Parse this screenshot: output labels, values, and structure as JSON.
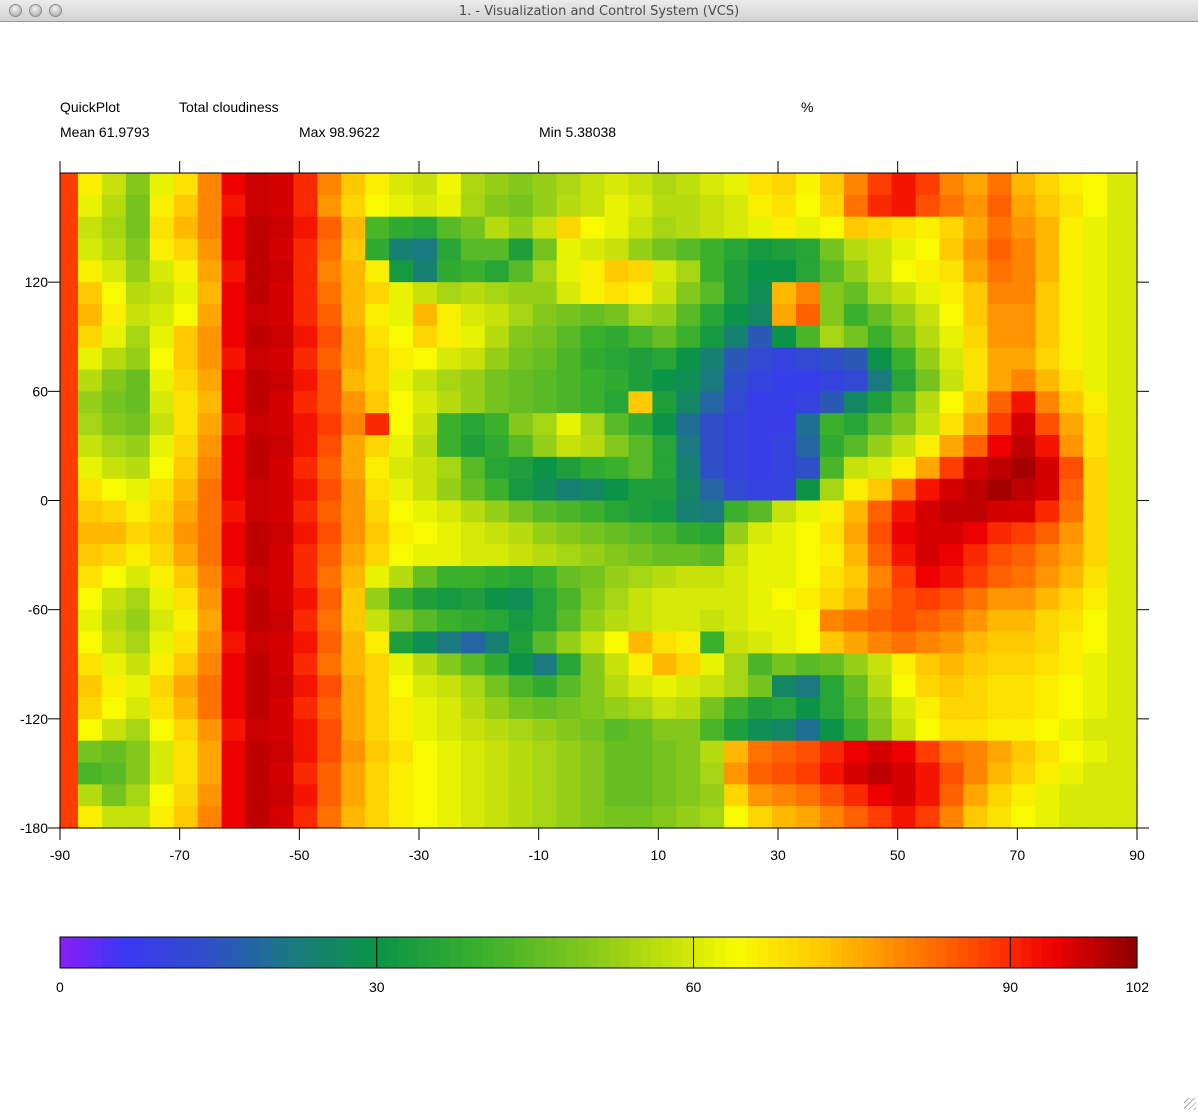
{
  "window": {
    "title": "1. - Visualization and Control System (VCS)"
  },
  "header": {
    "quickplot": "QuickPlot",
    "variable": "Total cloudiness",
    "units": "%",
    "mean": "Mean 61.9793",
    "max": "Max 98.9622",
    "min": "Min 5.38038"
  },
  "chart_data": {
    "type": "heatmap",
    "title": "Total cloudiness",
    "units": "%",
    "xlim": [
      -90,
      90
    ],
    "ylim": [
      -180,
      180
    ],
    "xticks": [
      -90,
      -70,
      -50,
      -30,
      -10,
      10,
      30,
      50,
      70,
      90
    ],
    "yticks": [
      -180,
      -120,
      -60,
      0,
      60,
      120
    ],
    "x_centers": [
      -89,
      -85,
      -81,
      -77,
      -73,
      -69,
      -65,
      -61,
      -57,
      -53,
      -49,
      -45,
      -41,
      -37,
      -33,
      -29,
      -25,
      -21,
      -17,
      -13,
      -9,
      -5,
      -1,
      3,
      7,
      11,
      15,
      19,
      23,
      27,
      31,
      35,
      39,
      43,
      47,
      51,
      55,
      59,
      63,
      67,
      71,
      75,
      79,
      83,
      87
    ],
    "y_centers": [
      174,
      162,
      150,
      138,
      126,
      114,
      102,
      90,
      78,
      66,
      54,
      42,
      30,
      18,
      6,
      -6,
      -18,
      -30,
      -42,
      -54,
      -66,
      -78,
      -90,
      -102,
      -114,
      -126,
      -138,
      -150,
      -162,
      -174
    ],
    "values": [
      [
        88,
        66,
        58,
        50,
        62,
        68,
        80,
        94,
        97,
        96,
        90,
        80,
        72,
        66,
        60,
        58,
        63,
        55,
        52,
        50,
        52,
        55,
        58,
        60,
        58,
        55,
        57,
        60,
        62,
        68,
        70,
        65,
        72,
        80,
        88,
        92,
        88,
        80,
        76,
        82,
        74,
        70,
        66,
        64,
        60
      ],
      [
        88,
        62,
        56,
        48,
        66,
        72,
        80,
        92,
        97,
        96,
        90,
        78,
        70,
        64,
        62,
        60,
        62,
        54,
        50,
        48,
        52,
        56,
        58,
        62,
        60,
        56,
        56,
        58,
        60,
        66,
        68,
        64,
        70,
        82,
        90,
        92,
        86,
        82,
        78,
        84,
        76,
        72,
        68,
        64,
        60
      ],
      [
        88,
        58,
        54,
        48,
        68,
        74,
        80,
        94,
        98,
        97,
        92,
        84,
        74,
        42,
        38,
        36,
        44,
        48,
        56,
        52,
        58,
        70,
        64,
        62,
        58,
        54,
        56,
        58,
        60,
        62,
        66,
        62,
        64,
        72,
        70,
        68,
        66,
        70,
        76,
        82,
        78,
        74,
        66,
        62,
        60
      ],
      [
        88,
        60,
        56,
        50,
        66,
        70,
        78,
        94,
        98,
        96,
        90,
        82,
        72,
        38,
        24,
        22,
        36,
        44,
        44,
        34,
        48,
        62,
        60,
        58,
        52,
        48,
        44,
        40,
        36,
        32,
        34,
        36,
        48,
        56,
        58,
        62,
        64,
        72,
        78,
        84,
        80,
        74,
        66,
        62,
        60
      ],
      [
        88,
        66,
        60,
        52,
        60,
        66,
        76,
        92,
        98,
        97,
        90,
        80,
        74,
        66,
        32,
        24,
        38,
        40,
        36,
        44,
        54,
        62,
        66,
        72,
        70,
        60,
        54,
        40,
        34,
        30,
        30,
        36,
        44,
        52,
        58,
        64,
        66,
        68,
        76,
        82,
        80,
        74,
        66,
        62,
        60
      ],
      [
        88,
        72,
        64,
        56,
        58,
        62,
        74,
        94,
        98,
        96,
        90,
        82,
        74,
        70,
        62,
        58,
        54,
        56,
        54,
        52,
        52,
        60,
        66,
        68,
        66,
        58,
        50,
        44,
        34,
        28,
        74,
        80,
        50,
        46,
        54,
        58,
        62,
        66,
        72,
        80,
        80,
        72,
        66,
        62,
        60
      ],
      [
        88,
        74,
        66,
        58,
        60,
        64,
        76,
        94,
        97,
        96,
        90,
        84,
        74,
        66,
        62,
        74,
        66,
        60,
        58,
        54,
        50,
        48,
        46,
        48,
        54,
        52,
        44,
        36,
        30,
        26,
        76,
        84,
        50,
        40,
        46,
        52,
        58,
        64,
        72,
        78,
        78,
        72,
        66,
        62,
        60
      ],
      [
        88,
        70,
        62,
        54,
        62,
        72,
        78,
        94,
        98,
        97,
        92,
        86,
        76,
        68,
        64,
        70,
        66,
        62,
        56,
        50,
        48,
        44,
        40,
        38,
        42,
        46,
        40,
        32,
        24,
        16,
        30,
        42,
        54,
        48,
        40,
        48,
        56,
        62,
        70,
        78,
        78,
        72,
        66,
        62,
        60
      ],
      [
        88,
        62,
        56,
        52,
        64,
        72,
        78,
        92,
        97,
        96,
        90,
        84,
        76,
        70,
        66,
        64,
        60,
        58,
        52,
        48,
        46,
        42,
        38,
        36,
        34,
        36,
        30,
        24,
        16,
        12,
        10,
        12,
        14,
        16,
        30,
        40,
        52,
        60,
        68,
        76,
        76,
        70,
        66,
        62,
        60
      ],
      [
        88,
        56,
        50,
        46,
        62,
        70,
        76,
        94,
        98,
        97,
        92,
        86,
        74,
        70,
        62,
        58,
        54,
        52,
        48,
        46,
        44,
        42,
        40,
        38,
        34,
        30,
        28,
        22,
        14,
        10,
        8,
        8,
        10,
        12,
        22,
        36,
        48,
        58,
        68,
        76,
        80,
        74,
        68,
        62,
        60
      ],
      [
        88,
        52,
        48,
        46,
        60,
        68,
        74,
        94,
        98,
        96,
        90,
        86,
        78,
        72,
        64,
        60,
        56,
        52,
        48,
        46,
        44,
        42,
        40,
        36,
        72,
        34,
        26,
        18,
        12,
        8,
        8,
        10,
        16,
        26,
        34,
        44,
        56,
        64,
        72,
        84,
        92,
        80,
        72,
        66,
        60
      ],
      [
        88,
        54,
        50,
        48,
        58,
        68,
        76,
        92,
        97,
        96,
        92,
        88,
        80,
        90,
        64,
        58,
        40,
        36,
        40,
        50,
        54,
        62,
        54,
        44,
        38,
        30,
        20,
        14,
        10,
        8,
        8,
        20,
        40,
        36,
        44,
        50,
        58,
        68,
        76,
        88,
        96,
        86,
        76,
        68,
        60
      ],
      [
        88,
        58,
        54,
        52,
        62,
        70,
        78,
        94,
        98,
        97,
        92,
        86,
        76,
        70,
        62,
        56,
        40,
        34,
        38,
        44,
        52,
        58,
        56,
        50,
        44,
        36,
        22,
        14,
        10,
        8,
        10,
        18,
        38,
        44,
        52,
        58,
        66,
        76,
        84,
        94,
        98,
        92,
        78,
        68,
        60
      ],
      [
        88,
        62,
        58,
        56,
        64,
        72,
        80,
        94,
        98,
        96,
        90,
        84,
        76,
        66,
        60,
        58,
        54,
        44,
        36,
        34,
        30,
        34,
        38,
        40,
        44,
        36,
        24,
        14,
        10,
        8,
        10,
        14,
        42,
        58,
        60,
        66,
        76,
        88,
        96,
        98,
        100,
        96,
        86,
        70,
        60
      ],
      [
        88,
        68,
        64,
        62,
        68,
        74,
        82,
        94,
        97,
        96,
        92,
        86,
        78,
        68,
        62,
        58,
        52,
        46,
        40,
        32,
        28,
        24,
        26,
        30,
        34,
        34,
        26,
        18,
        12,
        10,
        10,
        30,
        54,
        66,
        72,
        82,
        92,
        96,
        98,
        100,
        98,
        96,
        84,
        70,
        60
      ],
      [
        88,
        72,
        70,
        66,
        70,
        76,
        82,
        92,
        97,
        96,
        90,
        84,
        78,
        70,
        64,
        62,
        60,
        56,
        52,
        48,
        44,
        42,
        40,
        36,
        34,
        32,
        24,
        22,
        40,
        44,
        58,
        62,
        66,
        74,
        84,
        92,
        96,
        98,
        98,
        96,
        96,
        90,
        82,
        70,
        60
      ],
      [
        88,
        74,
        74,
        70,
        72,
        78,
        82,
        94,
        98,
        97,
        92,
        86,
        78,
        72,
        66,
        64,
        62,
        60,
        58,
        56,
        52,
        50,
        48,
        46,
        44,
        42,
        38,
        36,
        52,
        60,
        62,
        64,
        68,
        76,
        86,
        94,
        96,
        96,
        94,
        90,
        88,
        84,
        78,
        70,
        60
      ],
      [
        88,
        72,
        70,
        66,
        70,
        76,
        82,
        94,
        98,
        96,
        90,
        84,
        76,
        70,
        64,
        62,
        62,
        60,
        60,
        58,
        56,
        54,
        52,
        50,
        48,
        46,
        46,
        44,
        58,
        62,
        62,
        64,
        66,
        74,
        84,
        92,
        96,
        94,
        90,
        86,
        84,
        80,
        76,
        70,
        60
      ],
      [
        88,
        68,
        64,
        60,
        66,
        72,
        80,
        92,
        97,
        96,
        90,
        82,
        74,
        62,
        56,
        46,
        40,
        40,
        38,
        36,
        40,
        46,
        48,
        52,
        54,
        56,
        58,
        58,
        60,
        62,
        62,
        64,
        68,
        72,
        80,
        88,
        94,
        92,
        88,
        84,
        82,
        78,
        74,
        68,
        60
      ],
      [
        88,
        64,
        58,
        54,
        62,
        68,
        78,
        94,
        98,
        96,
        92,
        84,
        72,
        52,
        40,
        34,
        32,
        34,
        30,
        28,
        36,
        42,
        50,
        54,
        58,
        60,
        60,
        60,
        60,
        62,
        64,
        66,
        70,
        74,
        82,
        86,
        88,
        86,
        82,
        78,
        78,
        74,
        70,
        66,
        60
      ],
      [
        88,
        62,
        56,
        52,
        60,
        66,
        76,
        94,
        98,
        97,
        90,
        82,
        72,
        58,
        50,
        44,
        40,
        38,
        36,
        32,
        36,
        44,
        52,
        56,
        58,
        60,
        60,
        58,
        60,
        62,
        62,
        64,
        80,
        82,
        84,
        86,
        84,
        82,
        78,
        74,
        74,
        70,
        68,
        64,
        60
      ],
      [
        88,
        64,
        58,
        54,
        62,
        68,
        78,
        92,
        97,
        96,
        92,
        84,
        74,
        66,
        34,
        28,
        22,
        18,
        24,
        34,
        44,
        52,
        58,
        64,
        74,
        68,
        66,
        40,
        58,
        60,
        62,
        64,
        72,
        76,
        80,
        82,
        80,
        78,
        74,
        72,
        72,
        70,
        66,
        64,
        60
      ],
      [
        88,
        68,
        62,
        58,
        66,
        72,
        80,
        94,
        98,
        96,
        90,
        82,
        74,
        70,
        62,
        56,
        50,
        44,
        38,
        30,
        22,
        36,
        50,
        58,
        66,
        74,
        70,
        62,
        54,
        42,
        48,
        44,
        46,
        52,
        58,
        66,
        72,
        74,
        72,
        70,
        70,
        68,
        66,
        62,
        60
      ],
      [
        88,
        72,
        66,
        62,
        70,
        76,
        82,
        94,
        98,
        97,
        92,
        86,
        76,
        70,
        64,
        60,
        58,
        54,
        48,
        42,
        38,
        44,
        50,
        56,
        60,
        62,
        60,
        58,
        54,
        48,
        26,
        22,
        36,
        46,
        56,
        64,
        70,
        72,
        70,
        68,
        68,
        66,
        64,
        62,
        60
      ],
      [
        88,
        70,
        64,
        60,
        68,
        74,
        82,
        94,
        98,
        96,
        90,
        84,
        76,
        70,
        66,
        62,
        60,
        56,
        52,
        48,
        46,
        48,
        50,
        52,
        54,
        58,
        56,
        48,
        40,
        34,
        36,
        30,
        36,
        44,
        52,
        60,
        66,
        70,
        70,
        68,
        68,
        66,
        64,
        62,
        60
      ],
      [
        88,
        64,
        58,
        54,
        64,
        70,
        78,
        92,
        97,
        96,
        92,
        86,
        76,
        70,
        66,
        62,
        60,
        58,
        56,
        54,
        52,
        50,
        48,
        44,
        46,
        50,
        50,
        42,
        34,
        28,
        26,
        20,
        30,
        40,
        50,
        58,
        64,
        68,
        68,
        66,
        66,
        64,
        62,
        60,
        60
      ],
      [
        88,
        48,
        46,
        50,
        60,
        68,
        76,
        94,
        98,
        97,
        92,
        86,
        78,
        72,
        68,
        64,
        62,
        60,
        58,
        56,
        54,
        52,
        50,
        46,
        46,
        48,
        50,
        56,
        74,
        82,
        84,
        86,
        90,
        94,
        96,
        94,
        88,
        82,
        80,
        76,
        72,
        68,
        64,
        62,
        60
      ],
      [
        88,
        42,
        44,
        50,
        60,
        68,
        76,
        94,
        98,
        96,
        90,
        84,
        76,
        70,
        66,
        64,
        62,
        60,
        58,
        56,
        54,
        52,
        50,
        46,
        46,
        48,
        50,
        54,
        78,
        84,
        86,
        88,
        92,
        96,
        98,
        96,
        92,
        86,
        80,
        74,
        70,
        66,
        62,
        60,
        60
      ],
      [
        88,
        56,
        48,
        54,
        64,
        70,
        78,
        94,
        98,
        97,
        92,
        84,
        76,
        70,
        66,
        64,
        62,
        60,
        58,
        56,
        54,
        52,
        50,
        46,
        46,
        48,
        50,
        52,
        70,
        78,
        80,
        82,
        86,
        90,
        94,
        96,
        92,
        84,
        76,
        70,
        66,
        62,
        60,
        60,
        60
      ],
      [
        88,
        66,
        58,
        58,
        66,
        72,
        80,
        94,
        98,
        96,
        90,
        82,
        74,
        70,
        66,
        64,
        62,
        60,
        58,
        56,
        54,
        52,
        50,
        48,
        48,
        50,
        52,
        54,
        64,
        70,
        74,
        76,
        80,
        84,
        88,
        92,
        88,
        80,
        72,
        68,
        64,
        62,
        60,
        60,
        60
      ]
    ],
    "colorbar": {
      "min": 0,
      "max": 102,
      "tick_values": [
        0,
        30,
        60,
        90,
        102
      ],
      "tick_labels": [
        "0",
        "30",
        "60",
        "90",
        "102"
      ]
    },
    "grid": false,
    "legend": "colorbar-bottom"
  },
  "colors": {
    "scale_anchors": [
      {
        "v": 0,
        "c": "#8a1ef6"
      },
      {
        "v": 6,
        "c": "#3a37f4"
      },
      {
        "v": 14,
        "c": "#2f4fc8"
      },
      {
        "v": 22,
        "c": "#1a7a80"
      },
      {
        "v": 30,
        "c": "#0b9447"
      },
      {
        "v": 40,
        "c": "#3bb02c"
      },
      {
        "v": 50,
        "c": "#84c81c"
      },
      {
        "v": 58,
        "c": "#c6e20a"
      },
      {
        "v": 64,
        "c": "#f8fb00"
      },
      {
        "v": 72,
        "c": "#ffc900"
      },
      {
        "v": 80,
        "c": "#ff8400"
      },
      {
        "v": 88,
        "c": "#ff3d00"
      },
      {
        "v": 94,
        "c": "#ef0000"
      },
      {
        "v": 102,
        "c": "#8c0000"
      }
    ]
  }
}
